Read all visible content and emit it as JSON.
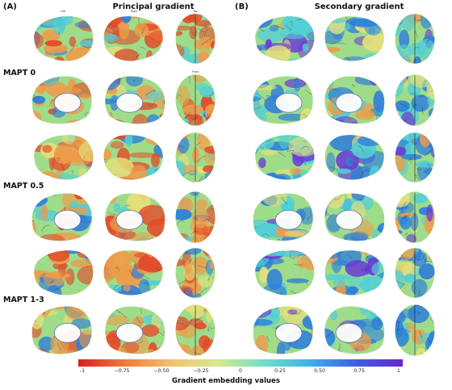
{
  "panels": [
    {
      "label": "(A)",
      "title": "Principal gradient"
    },
    {
      "label": "(B)",
      "title": "Secondary gradient"
    }
  ],
  "groups": [
    "MAPT 0",
    "MAPT 0.5",
    "MAPT 1-3"
  ],
  "view_labels": {
    "left": "Left",
    "right": "Right",
    "top": "Top",
    "front": "Front"
  },
  "colorbar": {
    "title": "Gradient embedding values",
    "ticks": [
      "-1",
      "−0.75",
      "−0.50",
      "−0.25",
      "0",
      "0.25",
      "0.50",
      "0.75",
      "1"
    ],
    "colormap": [
      "#d81e1e",
      "#ee7a3a",
      "#f2c26e",
      "#d6ea8c",
      "#6fe0c7",
      "#3fb2ea",
      "#3e5ee0",
      "#6a25cc"
    ]
  },
  "colors": {
    "red": "#e34a2a",
    "orange": "#ee9b4a",
    "yellow": "#e6df7a",
    "green": "#9fdc8a",
    "cyan": "#52cfd6",
    "blue": "#2f7fd9",
    "purple": "#6a3bd6",
    "midline": "#ffffff"
  }
}
